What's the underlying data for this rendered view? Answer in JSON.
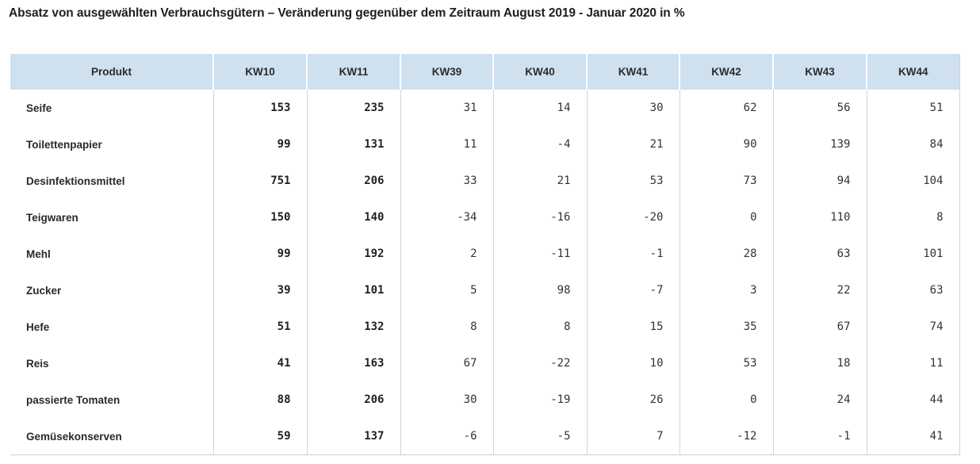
{
  "title": "Absatz von ausgewählten Verbrauchsgütern – Veränderung gegenüber dem Zeitraum August 2019 - Januar 2020 in %",
  "chart_data": {
    "type": "table",
    "title": "Absatz von ausgewählten Verbrauchsgütern – Veränderung gegenüber dem Zeitraum August 2019 - Januar 2020 in %",
    "columns": [
      "Produkt",
      "KW10",
      "KW11",
      "KW39",
      "KW40",
      "KW41",
      "KW42",
      "KW43",
      "KW44"
    ],
    "bold_columns": [
      "KW10",
      "KW11"
    ],
    "rows": [
      {
        "product": "Seife",
        "values": [
          "153",
          "235",
          "31",
          "14",
          "30",
          "62",
          "56",
          "51"
        ]
      },
      {
        "product": "Toilettenpapier",
        "values": [
          "99",
          "131",
          "11",
          "-4",
          "21",
          "90",
          "139",
          "84"
        ]
      },
      {
        "product": "Desinfektionsmittel",
        "values": [
          "751",
          "206",
          "33",
          "21",
          "53",
          "73",
          "94",
          "104"
        ]
      },
      {
        "product": "Teigwaren",
        "values": [
          "150",
          "140",
          "-34",
          "-16",
          "-20",
          "0",
          "110",
          "8"
        ]
      },
      {
        "product": "Mehl",
        "values": [
          "99",
          "192",
          "2",
          "-11",
          "-1",
          "28",
          "63",
          "101"
        ]
      },
      {
        "product": "Zucker",
        "values": [
          "39",
          "101",
          "5",
          "98",
          "-7",
          "3",
          "22",
          "63"
        ]
      },
      {
        "product": "Hefe",
        "values": [
          "51",
          "132",
          "8",
          "8",
          "15",
          "35",
          "67",
          "74"
        ]
      },
      {
        "product": "Reis",
        "values": [
          "41",
          "163",
          "67",
          "-22",
          "10",
          "53",
          "18",
          "11"
        ]
      },
      {
        "product": "passierte Tomaten",
        "values": [
          "88",
          "206",
          "30",
          "-19",
          "26",
          "0",
          "24",
          "44"
        ]
      },
      {
        "product": "Gemüsekonserven",
        "values": [
          "59",
          "137",
          "-6",
          "-5",
          "7",
          "-12",
          "-1",
          "41"
        ]
      }
    ]
  },
  "colors": {
    "header_bg": "#cfe0ef",
    "grid_line": "#d4d4d4",
    "text": "#1f1f1f"
  }
}
